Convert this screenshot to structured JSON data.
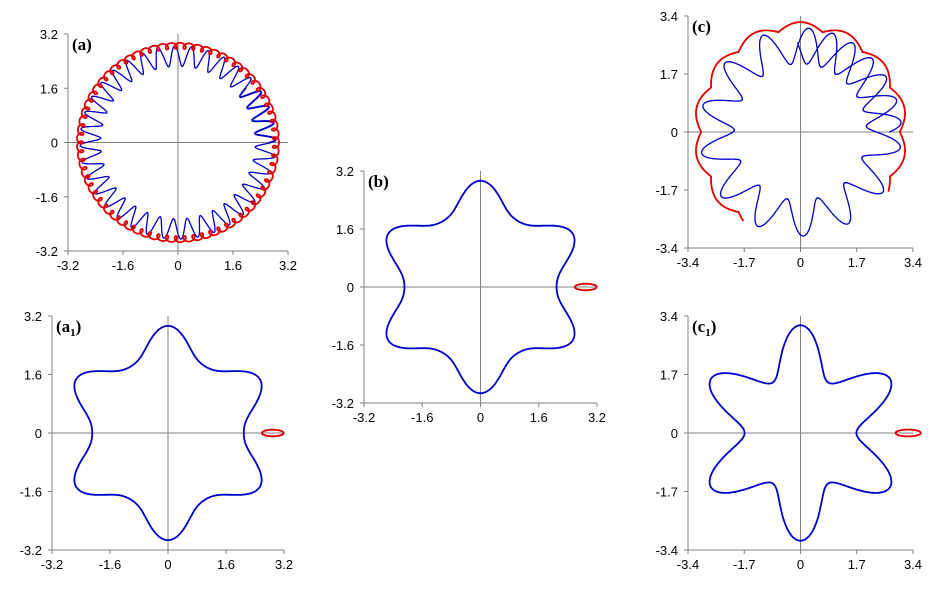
{
  "colors": {
    "blue": "#0000CC",
    "red": "#E00000",
    "axis": "#808080"
  },
  "chart_data": [
    {
      "id": "a",
      "label": "(a)",
      "label_main": "a",
      "label_sub": "",
      "type": "line",
      "xlim": [
        -3.2,
        3.2
      ],
      "ylim": [
        -3.2,
        3.2
      ],
      "x_ticks": [
        "-3.2",
        "-1.6",
        "0",
        "1.6",
        "3.2"
      ],
      "y_ticks": [
        "3.2",
        "1.6",
        "0",
        "-1.6",
        "-3.2"
      ],
      "series": [
        {
          "color": "blue",
          "curve": "annulus-loops",
          "r_inner": 2.25,
          "r_outer": 2.85,
          "loops": 40
        },
        {
          "color": "red",
          "curve": "tiny-loops",
          "r": 2.85,
          "loops": 70
        }
      ]
    },
    {
      "id": "b",
      "label": "(b)",
      "label_main": "b",
      "label_sub": "",
      "type": "line",
      "xlim": [
        -3.2,
        3.2
      ],
      "ylim": [
        -3.2,
        3.2
      ],
      "x_ticks": [
        "-3.2",
        "-1.6",
        "0",
        "1.6",
        "3.2"
      ],
      "y_ticks": [
        "3.2",
        "1.6",
        "0",
        "-1.6",
        "-3.2"
      ],
      "series": [
        {
          "color": "blue",
          "curve": "hexagonal-star",
          "r0": 2.45,
          "amp": 0.42,
          "lobes": 6
        },
        {
          "color": "red",
          "curve": "small-loop",
          "cx": 2.65,
          "cy": 0,
          "rx": 0.3,
          "ry": 0.09
        }
      ]
    },
    {
      "id": "c",
      "label": "(c)",
      "label_main": "c",
      "label_sub": "",
      "type": "line",
      "xlim": [
        -3.4,
        3.4
      ],
      "ylim": [
        -3.4,
        3.4
      ],
      "x_ticks": [
        "-3.4",
        "-1.7",
        "0",
        "1.7",
        "3.4"
      ],
      "y_ticks": [
        "3.4",
        "1.7",
        "0",
        "-1.7",
        "-3.4"
      ],
      "series": [
        {
          "color": "blue",
          "curve": "annulus-loops",
          "r_inner": 2.0,
          "r_outer": 3.05,
          "loops": 17
        },
        {
          "color": "red",
          "curve": "scallop-arcs",
          "r": 3.0,
          "arcs": 14
        }
      ]
    },
    {
      "id": "a1",
      "label": "(a1)",
      "label_main": "a",
      "label_sub": "1",
      "type": "line",
      "xlim": [
        -3.2,
        3.2
      ],
      "ylim": [
        -3.2,
        3.2
      ],
      "x_ticks": [
        "-3.2",
        "-1.6",
        "0",
        "1.6",
        "3.2"
      ],
      "y_ticks": [
        "3.2",
        "1.6",
        "0",
        "-1.6",
        "-3.2"
      ],
      "series": [
        {
          "color": "blue",
          "curve": "hexagonal-star",
          "r0": 2.45,
          "amp": 0.42,
          "lobes": 6
        },
        {
          "color": "red",
          "curve": "small-loop",
          "cx": 2.65,
          "cy": 0,
          "rx": 0.3,
          "ry": 0.09
        }
      ]
    },
    {
      "id": "c1",
      "label": "(c1)",
      "label_main": "c",
      "label_sub": "1",
      "type": "line",
      "xlim": [
        -3.4,
        3.4
      ],
      "ylim": [
        -3.4,
        3.4
      ],
      "x_ticks": [
        "-3.4",
        "-1.7",
        "0",
        "1.7",
        "3.4"
      ],
      "y_ticks": [
        "3.4",
        "1.7",
        "0",
        "-1.7",
        "-3.4"
      ],
      "series": [
        {
          "color": "blue",
          "curve": "hexagonal-star",
          "r0": 2.35,
          "amp": 0.72,
          "lobes": 6
        },
        {
          "color": "red",
          "curve": "small-loop",
          "cx": 2.95,
          "cy": 0,
          "rx": 0.38,
          "ry": 0.1
        }
      ]
    }
  ]
}
